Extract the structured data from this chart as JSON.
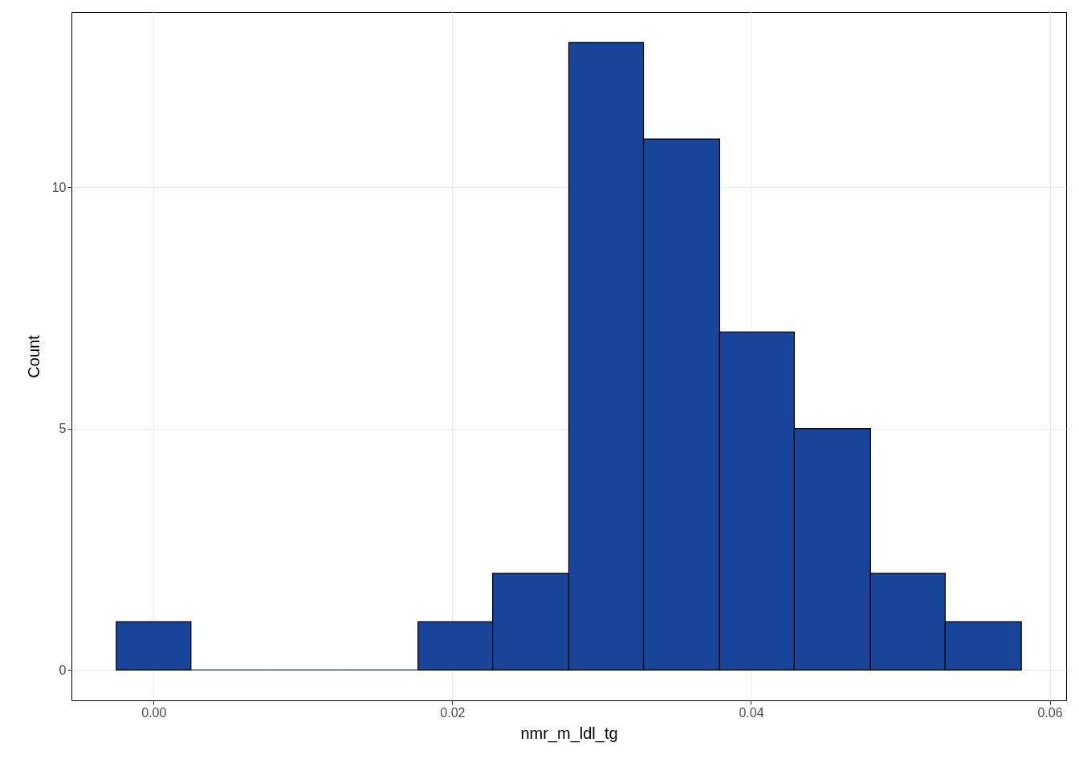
{
  "chart_data": {
    "type": "histogram",
    "xlabel": "nmr_m_ldl_tg",
    "ylabel": "Count",
    "bins": [
      -0.0025,
      0.0025,
      0.0076,
      0.0126,
      0.0177,
      0.0227,
      0.0278,
      0.0328,
      0.0379,
      0.0429,
      0.048,
      0.053,
      0.0581
    ],
    "values": [
      1,
      0,
      0,
      0,
      1,
      2,
      13,
      11,
      7,
      5,
      2,
      1
    ],
    "color": "#18449a",
    "xlim": [
      -0.0055,
      0.0611
    ],
    "ylim": [
      -0.63,
      13.63
    ],
    "xticks": [
      {
        "value": 0,
        "label": "0.00"
      },
      {
        "value": 0.02,
        "label": "0.02"
      },
      {
        "value": 0.04,
        "label": "0.04"
      },
      {
        "value": 0.06,
        "label": "0.06"
      }
    ],
    "yticks": [
      0,
      5,
      10
    ],
    "grid": true
  }
}
